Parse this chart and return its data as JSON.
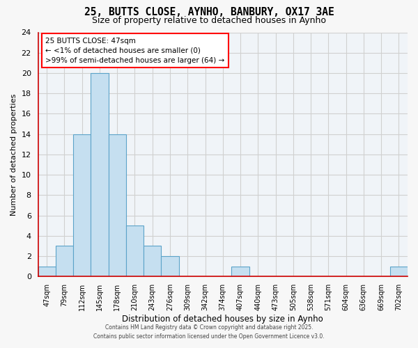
{
  "title": "25, BUTTS CLOSE, AYNHO, BANBURY, OX17 3AE",
  "subtitle": "Size of property relative to detached houses in Aynho",
  "xlabel": "Distribution of detached houses by size in Aynho",
  "ylabel": "Number of detached properties",
  "bin_labels": [
    "47sqm",
    "79sqm",
    "112sqm",
    "145sqm",
    "178sqm",
    "210sqm",
    "243sqm",
    "276sqm",
    "309sqm",
    "342sqm",
    "374sqm",
    "407sqm",
    "440sqm",
    "473sqm",
    "505sqm",
    "538sqm",
    "571sqm",
    "604sqm",
    "636sqm",
    "669sqm",
    "702sqm"
  ],
  "bar_heights": [
    1,
    3,
    14,
    20,
    14,
    5,
    3,
    2,
    0,
    0,
    0,
    1,
    0,
    0,
    0,
    0,
    0,
    0,
    0,
    0,
    1
  ],
  "bar_color": "#c5dff0",
  "bar_edge_color": "#5ba3c9",
  "ylim": [
    0,
    24
  ],
  "yticks": [
    0,
    2,
    4,
    6,
    8,
    10,
    12,
    14,
    16,
    18,
    20,
    22,
    24
  ],
  "annotation_text": "25 BUTTS CLOSE: 47sqm\n← <1% of detached houses are smaller (0)\n>99% of semi-detached houses are larger (64) →",
  "footer_line1": "Contains HM Land Registry data © Crown copyright and database right 2025.",
  "footer_line2": "Contains public sector information licensed under the Open Government Licence v3.0.",
  "background_color": "#f7f7f7",
  "plot_bg_color": "#f0f4f8",
  "grid_color": "#d0d0d0"
}
